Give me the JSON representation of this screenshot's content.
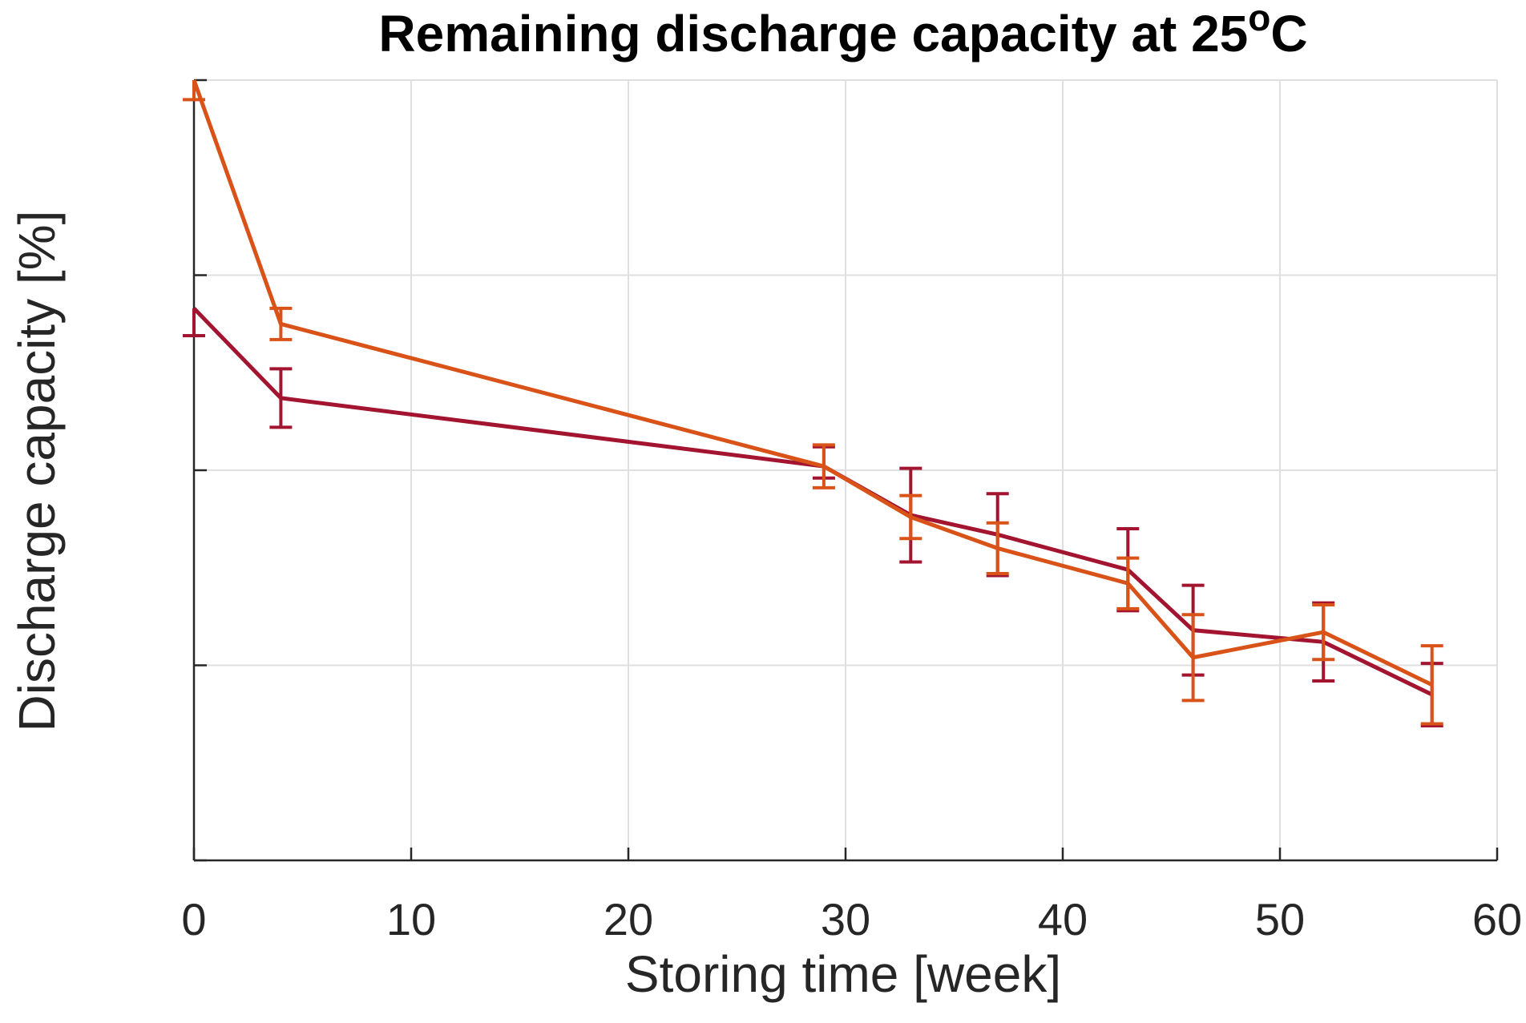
{
  "chart_data": {
    "type": "line",
    "title": {
      "main": "Remaining discharge capacity at 25",
      "superscript": "o",
      "suffix": "C"
    },
    "xlabel": "Storing time [week]",
    "ylabel": "Discharge capacity [%]",
    "xlim": [
      0,
      60
    ],
    "ylim": [
      0,
      4
    ],
    "xticks": [
      0,
      10,
      20,
      30,
      40,
      50,
      60
    ],
    "yticks": [
      0,
      1,
      2,
      3,
      4
    ],
    "ytick_labels_shown": false,
    "grid": true,
    "legend": "none",
    "series": [
      {
        "color": "#A2142F",
        "points": [
          {
            "x": 0,
            "y": 2.83,
            "err_low": 0.14,
            "err_high": 0
          },
          {
            "x": 4,
            "y": 2.37,
            "err_low": 0.15,
            "err_high": 0.15
          },
          {
            "x": 29,
            "y": 2.02,
            "err_low": 0.06,
            "err_high": 0.1
          },
          {
            "x": 33,
            "y": 1.77,
            "err_low": 0.24,
            "err_high": 0.24
          },
          {
            "x": 37,
            "y": 1.67,
            "err_low": 0.21,
            "err_high": 0.21
          },
          {
            "x": 43,
            "y": 1.49,
            "err_low": 0.21,
            "err_high": 0.21
          },
          {
            "x": 46,
            "y": 1.18,
            "err_low": 0.23,
            "err_high": 0.23
          },
          {
            "x": 52,
            "y": 1.12,
            "err_low": 0.2,
            "err_high": 0.2
          },
          {
            "x": 57,
            "y": 0.85,
            "err_low": 0.16,
            "err_high": 0.16
          }
        ]
      },
      {
        "color": "#D95319",
        "points": [
          {
            "x": 0,
            "y": 4.0,
            "err_low": 0.1,
            "err_high": 0
          },
          {
            "x": 4,
            "y": 2.75,
            "err_low": 0.08,
            "err_high": 0.08
          },
          {
            "x": 29,
            "y": 2.02,
            "err_low": 0.11,
            "err_high": 0.11
          },
          {
            "x": 33,
            "y": 1.76,
            "err_low": 0.11,
            "err_high": 0.11
          },
          {
            "x": 37,
            "y": 1.6,
            "err_low": 0.13,
            "err_high": 0.13
          },
          {
            "x": 43,
            "y": 1.42,
            "err_low": 0.13,
            "err_high": 0.13
          },
          {
            "x": 46,
            "y": 1.04,
            "err_low": 0.22,
            "err_high": 0.22
          },
          {
            "x": 52,
            "y": 1.17,
            "err_low": 0.14,
            "err_high": 0.14
          },
          {
            "x": 57,
            "y": 0.9,
            "err_low": 0.2,
            "err_high": 0.2
          }
        ]
      }
    ],
    "colors": {
      "axis": "#262626",
      "grid": "#DFDFDF"
    }
  }
}
